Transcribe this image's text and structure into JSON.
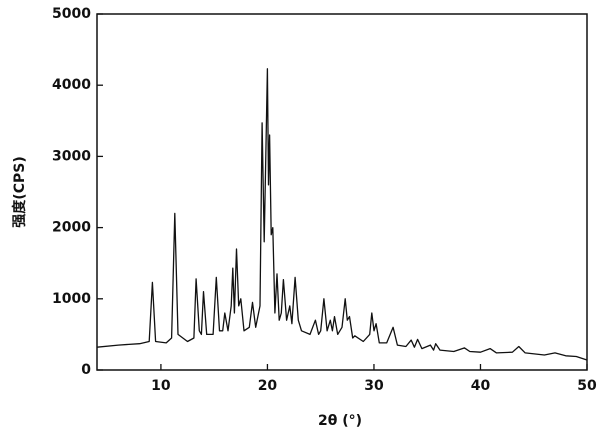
{
  "chart_data": {
    "type": "line",
    "x_label": "2θ (°)",
    "y_label": "强度(CPS)",
    "xlim": [
      4,
      50
    ],
    "xticks": [
      10,
      20,
      30,
      40,
      50
    ],
    "ylim": [
      0,
      5000
    ],
    "yticks": [
      0,
      1000,
      2000,
      3000,
      4000,
      5000
    ],
    "x": [
      4,
      6,
      8,
      8.9,
      9.2,
      9.5,
      10.5,
      11.0,
      11.3,
      11.6,
      12.5,
      13.1,
      13.3,
      13.6,
      13.8,
      14.0,
      14.3,
      14.9,
      15.2,
      15.5,
      15.8,
      16.0,
      16.3,
      16.6,
      16.75,
      16.9,
      17.1,
      17.3,
      17.5,
      17.8,
      18.3,
      18.6,
      18.9,
      19.3,
      19.5,
      19.7,
      19.85,
      20.0,
      20.1,
      20.2,
      20.35,
      20.5,
      20.7,
      20.9,
      21.1,
      21.3,
      21.5,
      21.8,
      22.1,
      22.3,
      22.6,
      22.9,
      23.2,
      24.0,
      24.5,
      24.8,
      25.0,
      25.3,
      25.6,
      25.9,
      26.1,
      26.3,
      26.6,
      27.0,
      27.3,
      27.5,
      27.7,
      28.0,
      28.2,
      29.0,
      29.6,
      29.8,
      30.0,
      30.2,
      30.5,
      31.2,
      31.8,
      32.2,
      33.0,
      33.5,
      33.8,
      34.1,
      34.5,
      35.3,
      35.6,
      35.8,
      36.2,
      37.5,
      38.5,
      39.0,
      40.0,
      40.9,
      41.5,
      43.0,
      43.6,
      44.2,
      46.0,
      47.0,
      48.0,
      49.0,
      50.0
    ],
    "series": [
      {
        "color": "#111111",
        "values": [
          320,
          350,
          370,
          400,
          1230,
          400,
          380,
          450,
          2200,
          500,
          400,
          450,
          1280,
          550,
          500,
          1100,
          500,
          500,
          1300,
          550,
          550,
          800,
          550,
          900,
          1430,
          800,
          1700,
          900,
          1000,
          550,
          600,
          950,
          600,
          900,
          3470,
          1800,
          3000,
          4230,
          2600,
          3300,
          1900,
          2000,
          800,
          1350,
          700,
          800,
          1270,
          700,
          900,
          650,
          1300,
          700,
          550,
          500,
          700,
          500,
          550,
          1000,
          550,
          700,
          550,
          750,
          500,
          600,
          1000,
          700,
          750,
          450,
          480,
          400,
          500,
          800,
          550,
          650,
          380,
          380,
          600,
          350,
          330,
          420,
          320,
          430,
          300,
          350,
          280,
          370,
          280,
          260,
          310,
          260,
          250,
          300,
          240,
          250,
          330,
          240,
          210,
          240,
          200,
          190,
          140
        ]
      }
    ]
  }
}
